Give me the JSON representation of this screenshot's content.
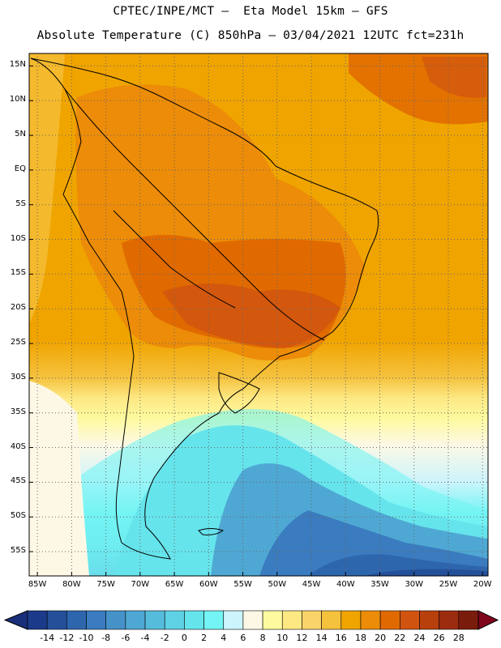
{
  "header": {
    "line1": "CPTEC/INPE/MCT –  Eta Model 15km – GFS",
    "line2": "Absolute Temperature (C) 850hPa – 03/04/2021 12UTC fct=231h"
  },
  "map": {
    "lat_labels": [
      "15N",
      "10N",
      "5N",
      "EQ",
      "5S",
      "10S",
      "15S",
      "20S",
      "25S",
      "30S",
      "35S",
      "40S",
      "45S",
      "50S",
      "55S"
    ],
    "lat_values": [
      15,
      10,
      5,
      0,
      -5,
      -10,
      -15,
      -20,
      -25,
      -30,
      -35,
      -40,
      -45,
      -50,
      -55
    ],
    "lon_labels": [
      "85W",
      "80W",
      "75W",
      "70W",
      "65W",
      "60W",
      "55W",
      "50W",
      "45W",
      "40W",
      "35W",
      "30W",
      "25W",
      "20W"
    ],
    "lon_values": [
      -85,
      -80,
      -75,
      -70,
      -65,
      -60,
      -55,
      -50,
      -45,
      -40,
      -35,
      -30,
      -25,
      -20
    ]
  },
  "colorbar": {
    "labels": [
      "-14",
      "-12",
      "-10",
      "-8",
      "-6",
      "-4",
      "-2",
      "0",
      "2",
      "4",
      "6",
      "8",
      "10",
      "12",
      "14",
      "16",
      "18",
      "20",
      "22",
      "24",
      "26",
      "28"
    ],
    "colors": [
      "#1b3a8a",
      "#24509a",
      "#2e66ae",
      "#3a7cbf",
      "#4592c8",
      "#4fa8d4",
      "#56bcdc",
      "#5ed2e4",
      "#66e4ec",
      "#74f4f4",
      "#ccf4fc",
      "#fdf8e6",
      "#fdfaa0",
      "#fde884",
      "#fad36a",
      "#f5c23e",
      "#f0a400",
      "#ec8c08",
      "#e06a00",
      "#d05410",
      "#b8400c",
      "#9c2c10",
      "#7a1c0c"
    ],
    "under_color": "#1a2f7a",
    "over_color": "#80061e"
  },
  "colors": {
    "frame": "#000000",
    "grid": "#666666",
    "land_border": "#000000"
  }
}
